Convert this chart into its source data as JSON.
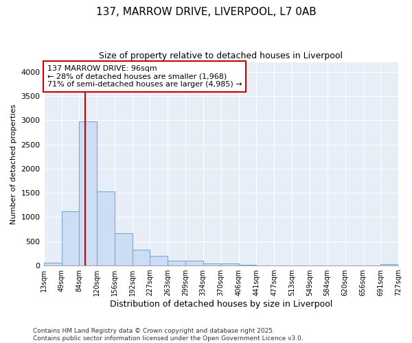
{
  "title": "137, MARROW DRIVE, LIVERPOOL, L7 0AB",
  "subtitle": "Size of property relative to detached houses in Liverpool",
  "xlabel": "Distribution of detached houses by size in Liverpool",
  "ylabel": "Number of detached properties",
  "bar_color": "#ccddf5",
  "bar_edge_color": "#7aaad0",
  "vline_x": 96,
  "vline_color": "#cc0000",
  "annotation_text": "137 MARROW DRIVE: 96sqm\n← 28% of detached houses are smaller (1,968)\n71% of semi-detached houses are larger (4,985) →",
  "annotation_box_color": "#cc0000",
  "bin_edges": [
    13,
    49,
    84,
    120,
    156,
    192,
    227,
    263,
    299,
    334,
    370,
    406,
    441,
    477,
    513,
    549,
    584,
    620,
    656,
    691,
    727
  ],
  "bin_counts": [
    55,
    1120,
    2970,
    1530,
    660,
    320,
    200,
    95,
    95,
    45,
    45,
    10,
    0,
    0,
    0,
    0,
    0,
    0,
    0,
    30
  ],
  "ylim": [
    0,
    4200
  ],
  "yticks": [
    0,
    500,
    1000,
    1500,
    2000,
    2500,
    3000,
    3500,
    4000
  ],
  "footer": "Contains HM Land Registry data © Crown copyright and database right 2025.\nContains public sector information licensed under the Open Government Licence v3.0.",
  "fig_background": "#ffffff",
  "plot_background": "#e8eef8",
  "grid_color": "#ffffff"
}
